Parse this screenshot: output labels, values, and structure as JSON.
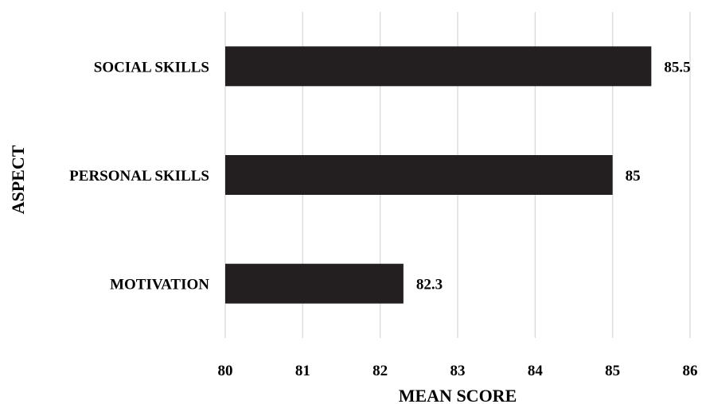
{
  "chart_data": {
    "type": "bar",
    "orientation": "horizontal",
    "categories": [
      "SOCIAL SKILLS",
      "PERSONAL SKILLS",
      "MOTIVATION"
    ],
    "values": [
      85.5,
      85,
      82.3
    ],
    "data_labels": [
      "85.5",
      "85",
      "82.3"
    ],
    "xlabel": "MEAN SCORE",
    "ylabel": "ASPECT",
    "xlim": [
      80,
      86
    ],
    "xticks": [
      "80",
      "81",
      "82",
      "83",
      "84",
      "85",
      "86"
    ],
    "grid": "vertical",
    "legend": "none",
    "bar_color": "#231f20"
  }
}
